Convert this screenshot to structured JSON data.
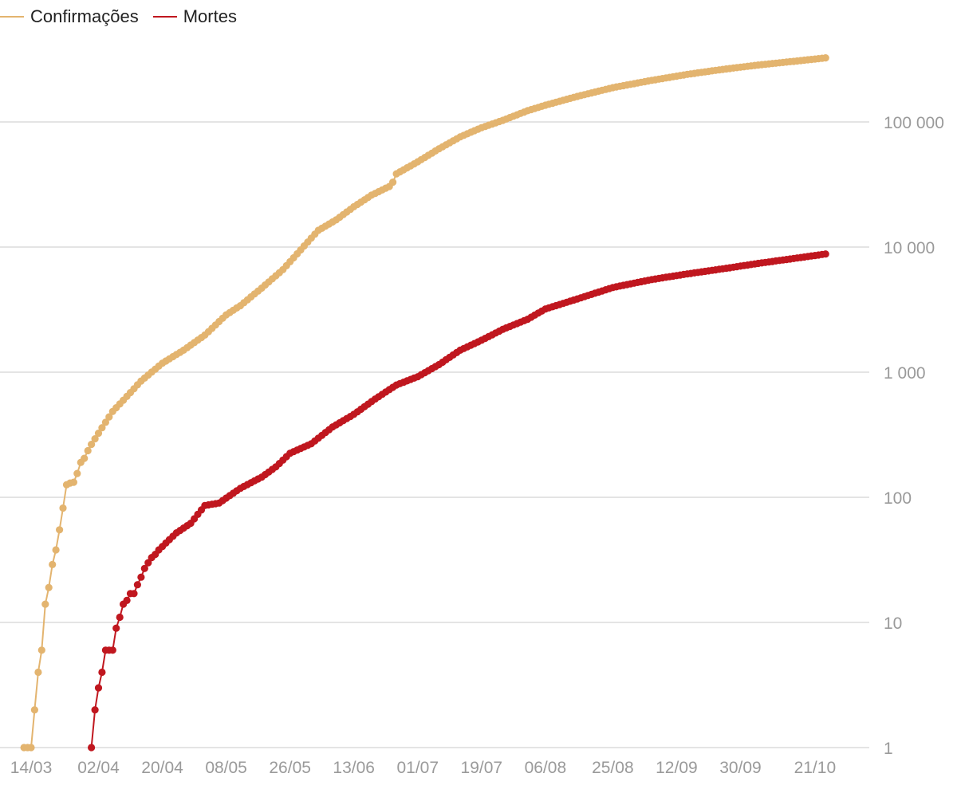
{
  "legend": {
    "items": [
      {
        "label": "Confirmações",
        "color": "#e3b46f"
      },
      {
        "label": "Mortes",
        "color": "#c0171f"
      }
    ]
  },
  "chart_data": {
    "type": "line",
    "yscale": "log",
    "ylim": [
      1,
      350000
    ],
    "xlim": [
      "2020-03-14",
      "2020-10-24"
    ],
    "grid": true,
    "legend_position": "top-left",
    "y_tick_labels": [
      "1",
      "10",
      "100",
      "1 000",
      "10 000",
      "100 000"
    ],
    "y_tick_values": [
      1,
      10,
      100,
      1000,
      10000,
      100000
    ],
    "x_tick_labels": [
      "14/03",
      "02/04",
      "20/04",
      "08/05",
      "26/05",
      "13/06",
      "01/07",
      "19/07",
      "06/08",
      "25/08",
      "12/09",
      "30/09",
      "21/10"
    ],
    "x_tick_values": [
      "2020-03-14",
      "2020-04-02",
      "2020-04-20",
      "2020-05-08",
      "2020-05-26",
      "2020-06-13",
      "2020-07-01",
      "2020-07-19",
      "2020-08-06",
      "2020-08-25",
      "2020-09-12",
      "2020-09-30",
      "2020-10-21"
    ],
    "series": [
      {
        "name": "Confirmações",
        "color": "#e3b46f",
        "points": [
          [
            "2020-03-12",
            1
          ],
          [
            "2020-03-13",
            1
          ],
          [
            "2020-03-14",
            1
          ],
          [
            "2020-03-15",
            2
          ],
          [
            "2020-03-16",
            4
          ],
          [
            "2020-03-17",
            6
          ],
          [
            "2020-03-18",
            14
          ],
          [
            "2020-03-19",
            19
          ],
          [
            "2020-03-20",
            29
          ],
          [
            "2020-03-21",
            38
          ],
          [
            "2020-03-22",
            55
          ],
          [
            "2020-03-23",
            82
          ],
          [
            "2020-03-24",
            126
          ],
          [
            "2020-03-25",
            130
          ],
          [
            "2020-03-26",
            132
          ],
          [
            "2020-03-27",
            155
          ],
          [
            "2020-03-28",
            190
          ],
          [
            "2020-03-29",
            205
          ],
          [
            "2020-03-30",
            236
          ],
          [
            "2020-03-31",
            265
          ],
          [
            "2020-04-03",
            360
          ],
          [
            "2020-04-06",
            485
          ],
          [
            "2020-04-10",
            640
          ],
          [
            "2020-04-14",
            850
          ],
          [
            "2020-04-20",
            1180
          ],
          [
            "2020-04-26",
            1500
          ],
          [
            "2020-05-02",
            1980
          ],
          [
            "2020-05-08",
            2870
          ],
          [
            "2020-05-12",
            3400
          ],
          [
            "2020-05-18",
            4700
          ],
          [
            "2020-05-24",
            6600
          ],
          [
            "2020-05-30",
            10200
          ],
          [
            "2020-06-03",
            13600
          ],
          [
            "2020-06-08",
            16500
          ],
          [
            "2020-06-13",
            21000
          ],
          [
            "2020-06-18",
            26000
          ],
          [
            "2020-06-23",
            30500
          ],
          [
            "2020-06-24",
            33000
          ],
          [
            "2020-06-25",
            38500
          ],
          [
            "2020-07-01",
            48000
          ],
          [
            "2020-07-07",
            61000
          ],
          [
            "2020-07-13",
            76000
          ],
          [
            "2020-07-19",
            90000
          ],
          [
            "2020-07-25",
            103000
          ],
          [
            "2020-08-01",
            123000
          ],
          [
            "2020-08-06",
            136000
          ],
          [
            "2020-08-15",
            160000
          ],
          [
            "2020-08-25",
            188000
          ],
          [
            "2020-09-05",
            215000
          ],
          [
            "2020-09-15",
            240000
          ],
          [
            "2020-09-25",
            263000
          ],
          [
            "2020-10-05",
            285000
          ],
          [
            "2020-10-15",
            305000
          ],
          [
            "2020-10-24",
            325000
          ]
        ]
      },
      {
        "name": "Mortes",
        "color": "#c0171f",
        "points": [
          [
            "2020-03-31",
            1
          ],
          [
            "2020-04-01",
            2
          ],
          [
            "2020-04-02",
            3
          ],
          [
            "2020-04-03",
            4
          ],
          [
            "2020-04-04",
            6
          ],
          [
            "2020-04-05",
            6
          ],
          [
            "2020-04-06",
            6
          ],
          [
            "2020-04-07",
            9
          ],
          [
            "2020-04-08",
            11
          ],
          [
            "2020-04-09",
            14
          ],
          [
            "2020-04-10",
            15
          ],
          [
            "2020-04-11",
            17
          ],
          [
            "2020-04-12",
            17
          ],
          [
            "2020-04-13",
            20
          ],
          [
            "2020-04-14",
            23
          ],
          [
            "2020-04-15",
            27
          ],
          [
            "2020-04-16",
            30
          ],
          [
            "2020-04-17",
            33
          ],
          [
            "2020-04-18",
            35
          ],
          [
            "2020-04-19",
            38
          ],
          [
            "2020-04-24",
            52
          ],
          [
            "2020-04-28",
            62
          ],
          [
            "2020-05-02",
            86
          ],
          [
            "2020-05-06",
            90
          ],
          [
            "2020-05-12",
            118
          ],
          [
            "2020-05-18",
            145
          ],
          [
            "2020-05-22",
            175
          ],
          [
            "2020-05-26",
            225
          ],
          [
            "2020-06-01",
            268
          ],
          [
            "2020-06-07",
            365
          ],
          [
            "2020-06-13",
            460
          ],
          [
            "2020-06-19",
            610
          ],
          [
            "2020-06-25",
            790
          ],
          [
            "2020-07-01",
            920
          ],
          [
            "2020-07-07",
            1150
          ],
          [
            "2020-07-13",
            1500
          ],
          [
            "2020-07-19",
            1800
          ],
          [
            "2020-07-25",
            2200
          ],
          [
            "2020-08-01",
            2650
          ],
          [
            "2020-08-06",
            3200
          ],
          [
            "2020-08-15",
            3850
          ],
          [
            "2020-08-25",
            4750
          ],
          [
            "2020-09-05",
            5500
          ],
          [
            "2020-09-15",
            6100
          ],
          [
            "2020-09-25",
            6700
          ],
          [
            "2020-10-05",
            7400
          ],
          [
            "2020-10-15",
            8100
          ],
          [
            "2020-10-24",
            8800
          ]
        ]
      }
    ]
  }
}
